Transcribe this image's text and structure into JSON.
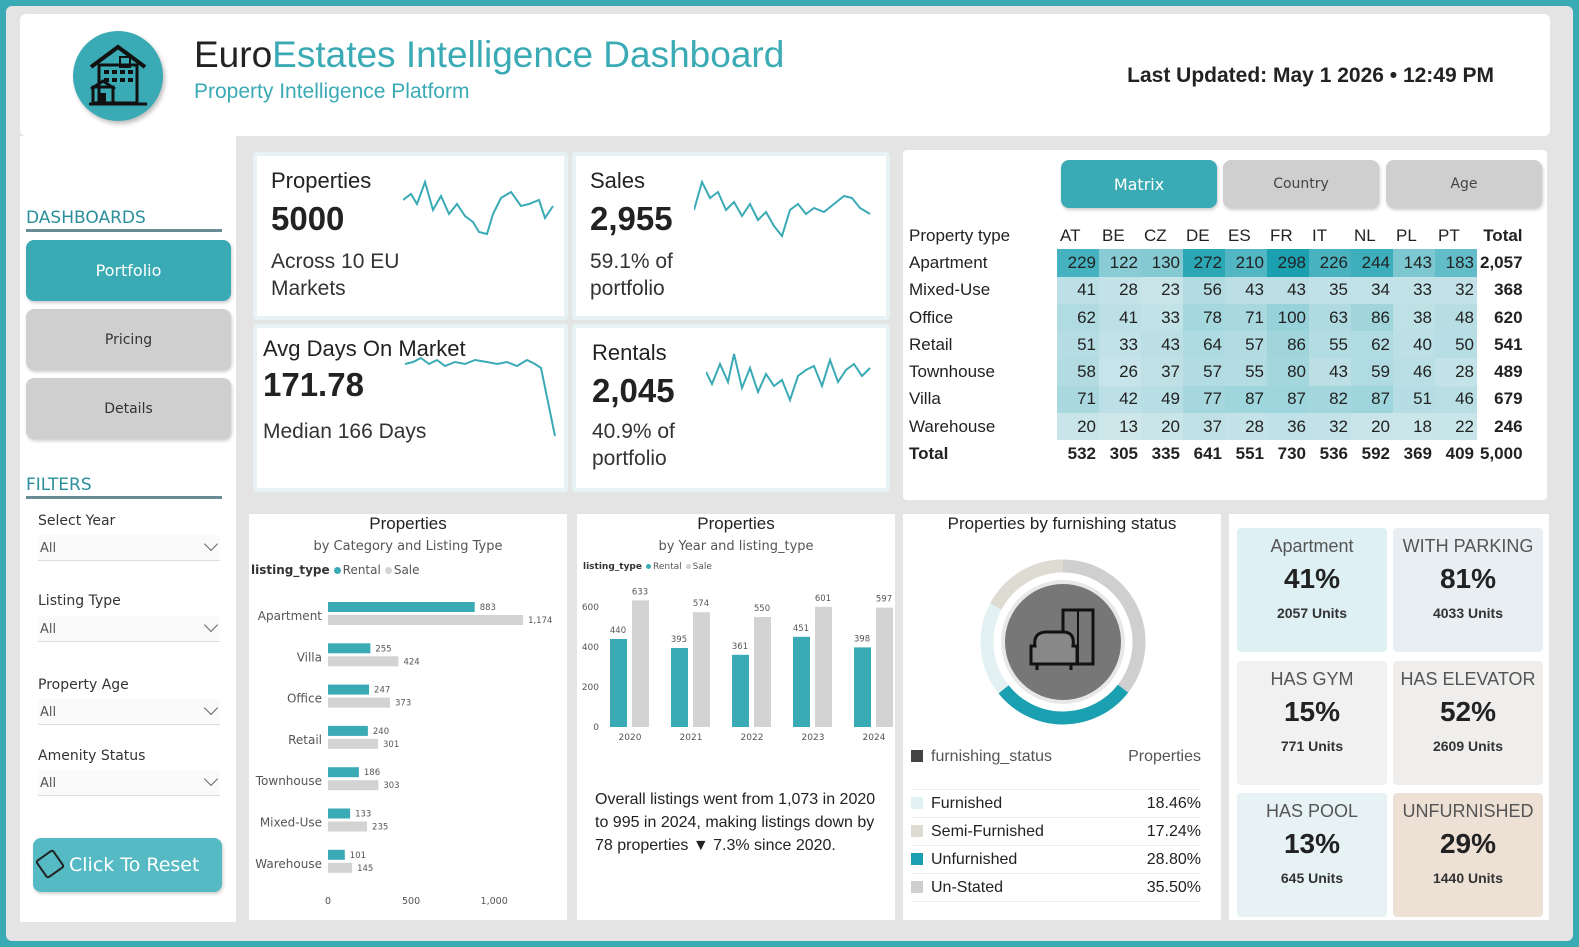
{
  "header": {
    "title_part1": "Euro",
    "title_part2": "Estates Intelligence Dashboard",
    "subtitle": "Property Intelligence Platform",
    "last_updated": "Last Updated: May 1 2026 • 12:49 PM",
    "logo_icon": "building-icon"
  },
  "sidebar": {
    "dashboards_heading": "DASHBOARDS",
    "nav": [
      {
        "label": "Portfolio",
        "active": true
      },
      {
        "label": "Pricing",
        "active": false
      },
      {
        "label": "Details",
        "active": false
      }
    ],
    "filters_heading": "FILTERS",
    "filters": [
      {
        "label": "Select Year",
        "value": "All"
      },
      {
        "label": "Listing Type",
        "value": "All"
      },
      {
        "label": "Property Age",
        "value": "All"
      },
      {
        "label": "Amenity Status",
        "value": "All"
      }
    ],
    "reset_label": "Click To Reset",
    "reset_icon": "eraser-icon"
  },
  "kpis": [
    {
      "title": "Properties",
      "value": "5000",
      "sub1": "Across 10 EU",
      "sub2": "Markets"
    },
    {
      "title": "Sales",
      "value": "2,955",
      "sub1": "59.1% of",
      "sub2": "portfolio"
    },
    {
      "title": "Avg Days On Market",
      "value": "171.78",
      "sub1": "Median 166 Days",
      "sub2": ""
    },
    {
      "title": "Rentals",
      "value": "2,045",
      "sub1": "40.9% of",
      "sub2": "portfolio"
    }
  ],
  "matrix": {
    "tabs": [
      "Matrix",
      "Country",
      "Age"
    ],
    "header_label": "Property type",
    "columns": [
      "AT",
      "BE",
      "CZ",
      "DE",
      "ES",
      "FR",
      "IT",
      "NL",
      "PL",
      "PT",
      "Total"
    ],
    "rows": [
      {
        "label": "Apartment",
        "values": [
          "229",
          "122",
          "130",
          "272",
          "210",
          "298",
          "226",
          "244",
          "143",
          "183"
        ],
        "total": "2,057"
      },
      {
        "label": "Mixed-Use",
        "values": [
          "41",
          "28",
          "23",
          "56",
          "43",
          "43",
          "35",
          "34",
          "33",
          "32"
        ],
        "total": "368"
      },
      {
        "label": "Office",
        "values": [
          "62",
          "41",
          "33",
          "78",
          "71",
          "100",
          "63",
          "86",
          "38",
          "48"
        ],
        "total": "620"
      },
      {
        "label": "Retail",
        "values": [
          "51",
          "33",
          "43",
          "64",
          "57",
          "86",
          "55",
          "62",
          "40",
          "50"
        ],
        "total": "541"
      },
      {
        "label": "Townhouse",
        "values": [
          "58",
          "26",
          "37",
          "57",
          "55",
          "80",
          "43",
          "59",
          "46",
          "28"
        ],
        "total": "489"
      },
      {
        "label": "Villa",
        "values": [
          "71",
          "42",
          "49",
          "77",
          "87",
          "87",
          "82",
          "87",
          "51",
          "46"
        ],
        "total": "679"
      },
      {
        "label": "Warehouse",
        "values": [
          "20",
          "13",
          "20",
          "37",
          "28",
          "36",
          "32",
          "20",
          "18",
          "22"
        ],
        "total": "246"
      }
    ],
    "total_row": {
      "label": "Total",
      "values": [
        "532",
        "305",
        "335",
        "641",
        "551",
        "730",
        "536",
        "592",
        "369",
        "409"
      ],
      "total": "5,000"
    }
  },
  "chart_data": [
    {
      "type": "bar",
      "orientation": "horizontal",
      "title": "Properties",
      "subtitle": "by Category and Listing Type",
      "legend_title": "listing_type",
      "categories": [
        "Apartment",
        "Villa",
        "Office",
        "Retail",
        "Townhouse",
        "Mixed-Use",
        "Warehouse"
      ],
      "series": [
        {
          "name": "Rental",
          "values": [
            883,
            255,
            247,
            240,
            186,
            133,
            101
          ],
          "color": "#3aaab5"
        },
        {
          "name": "Sale",
          "values": [
            1174,
            424,
            373,
            301,
            303,
            235,
            145
          ],
          "color": "#d3d3d3"
        }
      ],
      "xticks": [
        "0",
        "500",
        "1,000"
      ],
      "xlim": [
        0,
        1300
      ]
    },
    {
      "type": "bar",
      "title": "Properties",
      "subtitle": "by Year and listing_type",
      "legend_title": "listing_type",
      "categories": [
        "2020",
        "2021",
        "2022",
        "2023",
        "2024"
      ],
      "series": [
        {
          "name": "Rental",
          "values": [
            440,
            395,
            361,
            451,
            398
          ],
          "color": "#3aaab5"
        },
        {
          "name": "Sale",
          "values": [
            633,
            574,
            550,
            601,
            597
          ],
          "color": "#d3d3d3"
        }
      ],
      "yticks": [
        "0",
        "200",
        "400",
        "600"
      ],
      "ylim": [
        0,
        650
      ]
    },
    {
      "type": "pie",
      "donut": true,
      "title": "Properties by furnishing status",
      "categories": [
        "Furnished",
        "Semi-Furnished",
        "Unfurnished",
        "Un-Stated"
      ],
      "values": [
        18.46,
        17.24,
        28.8,
        35.5
      ],
      "colors": [
        "#e3f1f3",
        "#dedbd3",
        "#1aa0b0",
        "#cfcfcf"
      ]
    }
  ],
  "chart2_note": "Overall listings went from 1,073 in 2020 to 995 in 2024, making listings down by 78 properties ▼ 7.3% since 2020.",
  "furnishing": {
    "center_icon": "armchair-wardrobe-icon",
    "col1": "furnishing_status",
    "col2": "Properties",
    "rows": [
      {
        "label": "Furnished",
        "pct": "18.46%"
      },
      {
        "label": "Semi-Furnished",
        "pct": "17.24%"
      },
      {
        "label": "Unfurnished",
        "pct": "28.80%"
      },
      {
        "label": "Un-Stated",
        "pct": "35.50%"
      }
    ]
  },
  "amenities": [
    {
      "title": "Apartment",
      "pct": "41%",
      "units": "2057 Units",
      "bg": "#def0f3"
    },
    {
      "title": "WITH PARKING",
      "pct": "81%",
      "units": "4033 Units",
      "bg": "#e9eef2"
    },
    {
      "title": "HAS GYM",
      "pct": "15%",
      "units": "771 Units",
      "bg": "#f1f1f1"
    },
    {
      "title": "HAS ELEVATOR",
      "pct": "52%",
      "units": "2609 Units",
      "bg": "#efeeec"
    },
    {
      "title": "HAS POOL",
      "pct": "13%",
      "units": "645 Units",
      "bg": "#e6f2f4"
    },
    {
      "title": "UNFURNISHED",
      "pct": "29%",
      "units": "1440 Units",
      "bg": "#ede1d5"
    }
  ],
  "colors": {
    "accent": "#3aaab5",
    "tab_inactive": "#cfcfcf"
  }
}
